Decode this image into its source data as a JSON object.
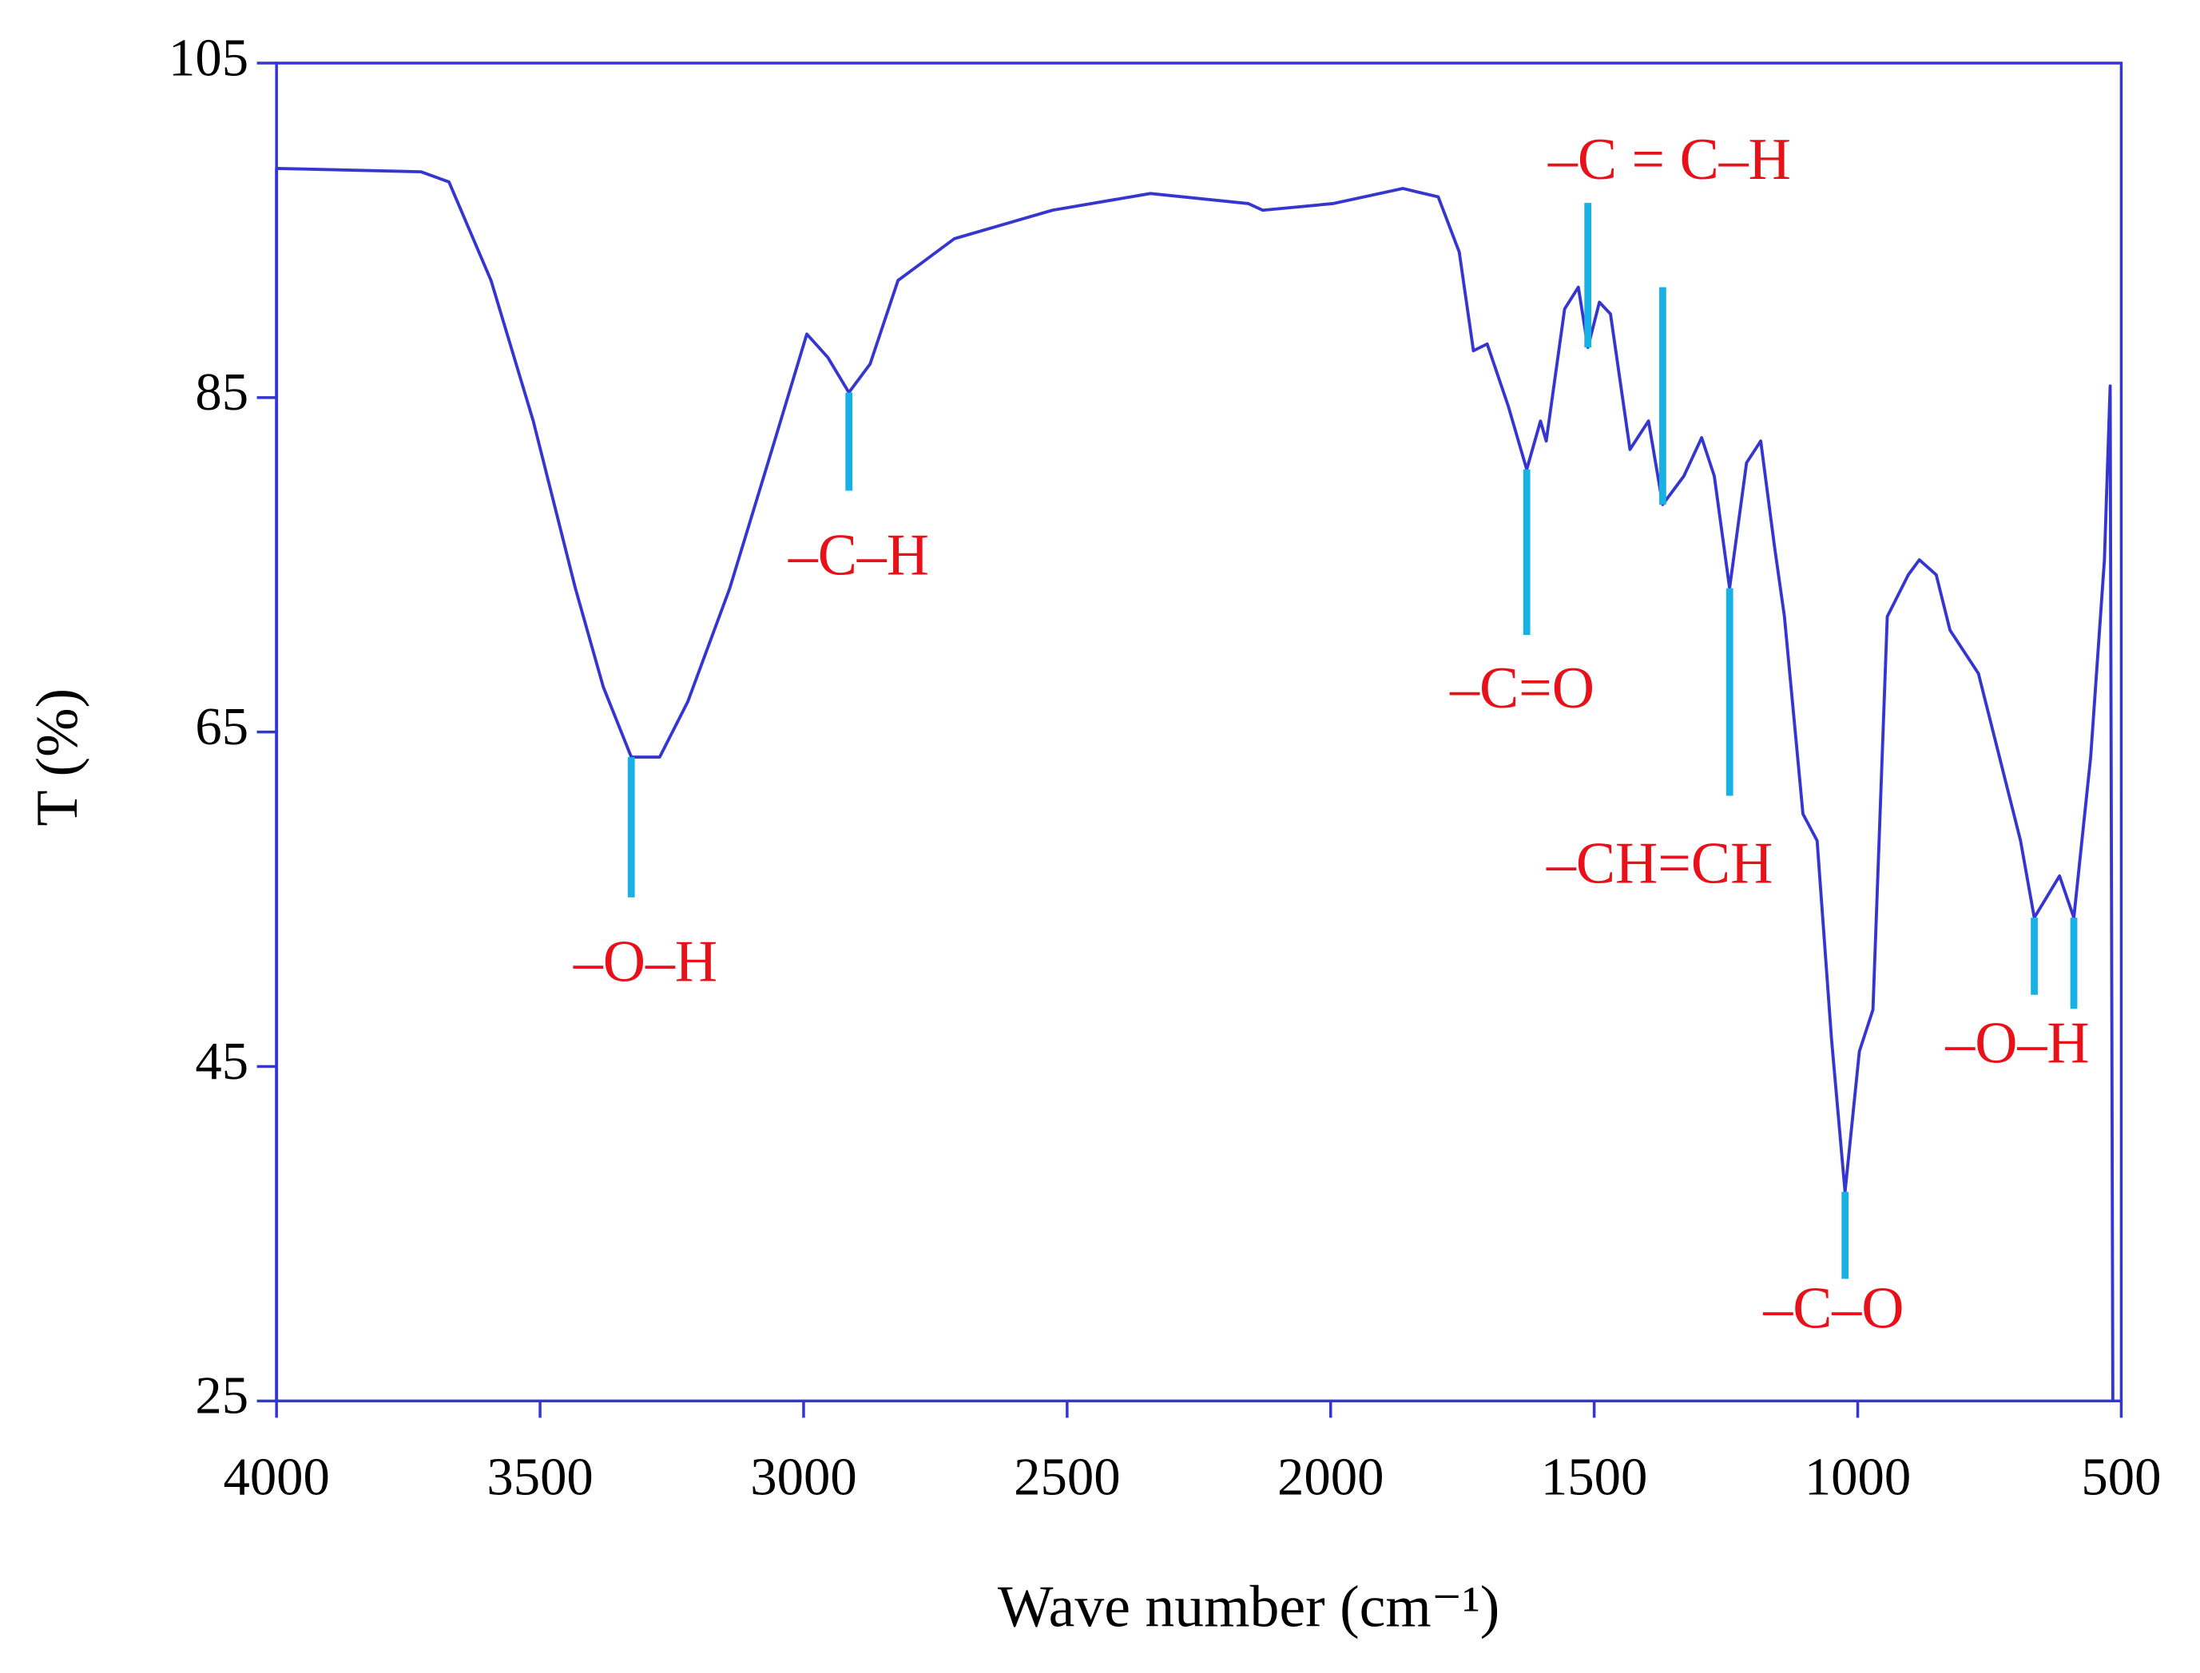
{
  "chart_data": {
    "type": "line",
    "xlabel": "Wave number  (cm⁻¹)",
    "ylabel": "T (%)",
    "color": "#3535d0",
    "frame_color": "#3535d0",
    "x": [
      4000,
      4000,
      3726,
      3673,
      3593,
      3513,
      3433,
      3380,
      3327,
      3273,
      3220,
      3140,
      3060,
      2994,
      2954,
      2914,
      2874,
      2821,
      2714,
      2528,
      2342,
      2156,
      2129,
      1996,
      1863,
      1796,
      1756,
      1729,
      1703,
      1663,
      1628,
      1602,
      1591,
      1556,
      1530,
      1512,
      1490,
      1469,
      1432,
      1397,
      1370,
      1330,
      1296,
      1272,
      1243,
      1211,
      1184,
      1158,
      1139,
      1104,
      1077,
      1050,
      1024,
      997,
      971,
      944,
      904,
      883,
      851,
      825,
      771,
      691,
      665,
      617,
      590,
      558,
      532,
      521,
      516
    ],
    "values": [
      25,
      98.7,
      98.5,
      97.9,
      92.0,
      83.6,
      73.6,
      67.7,
      63.5,
      63.5,
      66.8,
      73.6,
      81.9,
      88.8,
      87.4,
      85.3,
      87.0,
      92.0,
      94.5,
      96.2,
      97.2,
      96.6,
      96.2,
      96.6,
      97.5,
      97.0,
      93.7,
      87.8,
      88.2,
      84.5,
      80.7,
      83.6,
      82.4,
      90.3,
      91.6,
      88.0,
      90.7,
      90.0,
      81.9,
      83.6,
      78.6,
      80.3,
      82.6,
      80.3,
      73.6,
      81.1,
      82.4,
      76.1,
      71.9,
      60.1,
      58.5,
      46.7,
      37.5,
      45.9,
      48.4,
      71.9,
      74.4,
      75.3,
      74.4,
      71.1,
      68.5,
      58.5,
      53.9,
      56.4,
      53.9,
      63.5,
      75.3,
      85.7,
      25
    ],
    "xlim": [
      4000,
      500
    ],
    "ylim": [
      25,
      105
    ],
    "xticks": [
      4000,
      3500,
      3000,
      2500,
      2000,
      1500,
      1000,
      500
    ],
    "yticks": [
      25,
      45,
      65,
      85,
      105
    ],
    "annotation_color": "#19b0e6",
    "annotations": [
      {
        "label": "–O–H",
        "x": [
          3327
        ],
        "y": [
          63.5
        ]
      },
      {
        "label": "–C–H",
        "x": [
          2914
        ],
        "y": [
          85.3
        ]
      },
      {
        "label": "–C=O",
        "x": [
          1628
        ],
        "y": [
          80.7
        ]
      },
      {
        "label": "–C = C–H",
        "x": [
          1512,
          1370
        ],
        "y": [
          88.0,
          78.6
        ]
      },
      {
        "label": "–CH=CH",
        "x": [
          1243
        ],
        "y": [
          73.6
        ]
      },
      {
        "label": "–C–O",
        "x": [
          1024
        ],
        "y": [
          37.5
        ]
      },
      {
        "label": "–O–H",
        "x": [
          665,
          590
        ],
        "y": [
          53.9,
          53.9
        ]
      }
    ]
  }
}
